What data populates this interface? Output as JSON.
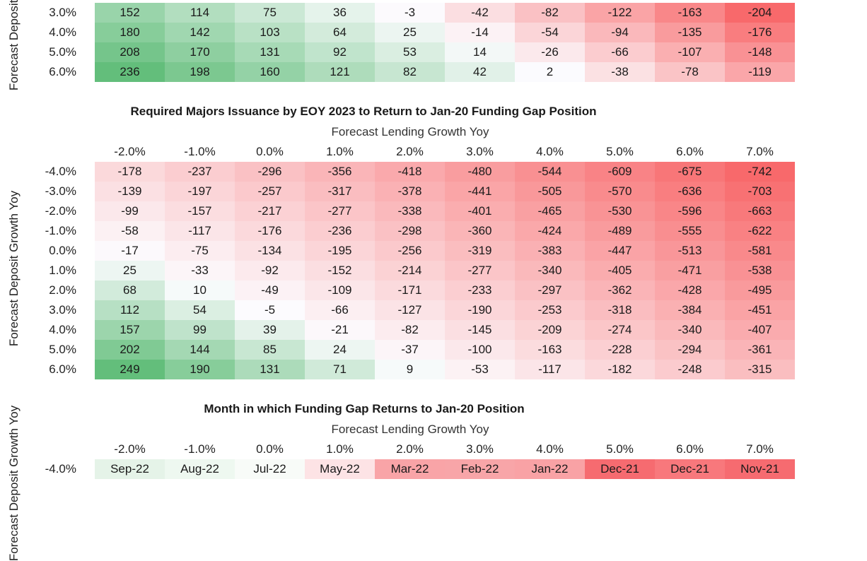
{
  "heatmap_top": {
    "ylabel": "Forecast Deposit Growth Yoy",
    "row_labels": [
      "3.0%",
      "4.0%",
      "5.0%",
      "6.0%"
    ],
    "rows": [
      [
        "152",
        "114",
        "75",
        "36",
        "-3",
        "-42",
        "-82",
        "-122",
        "-163",
        "-204"
      ],
      [
        "180",
        "142",
        "103",
        "64",
        "25",
        "-14",
        "-54",
        "-94",
        "-135",
        "-176"
      ],
      [
        "208",
        "170",
        "131",
        "92",
        "53",
        "14",
        "-26",
        "-66",
        "-107",
        "-148"
      ],
      [
        "236",
        "198",
        "160",
        "121",
        "82",
        "42",
        "2",
        "-38",
        "-78",
        "-119"
      ]
    ]
  },
  "heatmap_issuance": {
    "title": "Required Majors Issuance by EOY 2023 to Return to Jan-20 Funding Gap Position",
    "subtitle": "Forecast Lending Growth Yoy",
    "ylabel": "Forecast Deposit Growth Yoy",
    "col_labels": [
      "-2.0%",
      "-1.0%",
      "0.0%",
      "1.0%",
      "2.0%",
      "3.0%",
      "4.0%",
      "5.0%",
      "6.0%",
      "7.0%"
    ],
    "row_labels": [
      "-4.0%",
      "-3.0%",
      "-2.0%",
      "-1.0%",
      "0.0%",
      "1.0%",
      "2.0%",
      "3.0%",
      "4.0%",
      "5.0%",
      "6.0%"
    ],
    "rows": [
      [
        "-178",
        "-237",
        "-296",
        "-356",
        "-418",
        "-480",
        "-544",
        "-609",
        "-675",
        "-742"
      ],
      [
        "-139",
        "-197",
        "-257",
        "-317",
        "-378",
        "-441",
        "-505",
        "-570",
        "-636",
        "-703"
      ],
      [
        "-99",
        "-157",
        "-217",
        "-277",
        "-338",
        "-401",
        "-465",
        "-530",
        "-596",
        "-663"
      ],
      [
        "-58",
        "-117",
        "-176",
        "-236",
        "-298",
        "-360",
        "-424",
        "-489",
        "-555",
        "-622"
      ],
      [
        "-17",
        "-75",
        "-134",
        "-195",
        "-256",
        "-319",
        "-383",
        "-447",
        "-513",
        "-581"
      ],
      [
        "25",
        "-33",
        "-92",
        "-152",
        "-214",
        "-277",
        "-340",
        "-405",
        "-471",
        "-538"
      ],
      [
        "68",
        "10",
        "-49",
        "-109",
        "-171",
        "-233",
        "-297",
        "-362",
        "-428",
        "-495"
      ],
      [
        "112",
        "54",
        "-5",
        "-66",
        "-127",
        "-190",
        "-253",
        "-318",
        "-384",
        "-451"
      ],
      [
        "157",
        "99",
        "39",
        "-21",
        "-82",
        "-145",
        "-209",
        "-274",
        "-340",
        "-407"
      ],
      [
        "202",
        "144",
        "85",
        "24",
        "-37",
        "-100",
        "-163",
        "-228",
        "-294",
        "-361"
      ],
      [
        "249",
        "190",
        "131",
        "71",
        "9",
        "-53",
        "-117",
        "-182",
        "-248",
        "-315"
      ]
    ]
  },
  "heatmap_month": {
    "title": "Month in which Funding Gap Returns to Jan-20 Position",
    "subtitle": "Forecast Lending Growth Yoy",
    "ylabel": "Forecast Deposit Growth Yoy",
    "col_labels": [
      "-2.0%",
      "-1.0%",
      "0.0%",
      "1.0%",
      "2.0%",
      "3.0%",
      "4.0%",
      "5.0%",
      "6.0%",
      "7.0%"
    ],
    "row_labels": [
      "-4.0%"
    ],
    "rows": [
      [
        "Sep-22",
        "Aug-22",
        "Jul-22",
        "May-22",
        "Mar-22",
        "Feb-22",
        "Jan-22",
        "Dec-21",
        "Dec-21",
        "Nov-21"
      ]
    ],
    "row_tints": [
      [
        "#e5f3e8",
        "#eef8f0",
        "#f8fbf8",
        "#fde3e5",
        "#f9a4a7",
        "#f8a5a8",
        "#f9a2a5",
        "#f66b70",
        "#f8787c",
        "#f66b70"
      ]
    ]
  },
  "colors": {
    "neg_strong": "#f8696b",
    "pos_strong": "#63be7b",
    "neutral": "#fcfcff"
  }
}
